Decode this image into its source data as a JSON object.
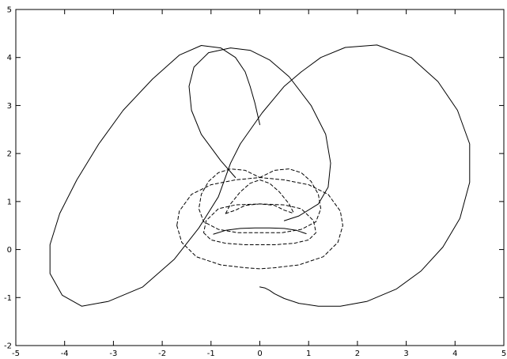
{
  "chart_data": {
    "type": "line",
    "title": "",
    "xlabel": "",
    "ylabel": "",
    "xlim": [
      -5,
      5
    ],
    "ylim": [
      -2,
      5
    ],
    "x_ticks": [
      -5,
      -4,
      -3,
      -2,
      -1,
      0,
      1,
      2,
      3,
      4,
      5
    ],
    "y_ticks": [
      -2,
      -1,
      0,
      1,
      2,
      3,
      4,
      5
    ],
    "x_tick_labels": [
      "-5",
      "-4",
      "-3",
      "-2",
      "-1",
      "0",
      "1",
      "2",
      "3",
      "4",
      "5"
    ],
    "y_tick_labels": [
      "-2",
      "-1",
      "0",
      "1",
      "2",
      "3",
      "4",
      "5"
    ],
    "grid": false,
    "legend": "none",
    "series": [
      {
        "style": "solid",
        "color": "#000000",
        "x": [
          0.0,
          0.1,
          0.2,
          0.3,
          0.5,
          0.8,
          1.2,
          1.65,
          2.2,
          2.8,
          3.3,
          3.75,
          4.1,
          4.3,
          4.3,
          4.05,
          3.65,
          3.1,
          2.4,
          1.75,
          1.25,
          0.85,
          0.5,
          0.05,
          -0.4,
          -0.6,
          -0.85,
          -1.25,
          -1.75,
          -2.4,
          -3.1,
          -3.65,
          -4.05,
          -4.3,
          -4.3,
          -4.1,
          -3.75,
          -3.3,
          -2.8,
          -2.2,
          -1.65,
          -1.2,
          -0.8,
          -0.5,
          -0.3,
          -0.2,
          -0.1,
          0.0
        ],
        "y": [
          -0.78,
          -0.8,
          -0.85,
          -0.92,
          -1.02,
          -1.12,
          -1.18,
          -1.18,
          -1.08,
          -0.82,
          -0.45,
          0.05,
          0.65,
          1.4,
          2.2,
          2.9,
          3.5,
          4.0,
          4.26,
          4.21,
          4.0,
          3.7,
          3.4,
          2.85,
          2.2,
          1.8,
          1.1,
          0.45,
          -0.2,
          -0.78,
          -1.08,
          -1.18,
          -0.95,
          -0.5,
          0.1,
          0.75,
          1.45,
          2.2,
          2.9,
          3.55,
          4.05,
          4.25,
          4.2,
          4.0,
          3.7,
          3.4,
          3.05,
          2.6
        ]
      },
      {
        "style": "solid",
        "color": "#000000",
        "x": [
          -0.5,
          -0.8,
          -1.2,
          -1.4,
          -1.45,
          -1.35,
          -1.05,
          -0.6,
          -0.2,
          0.2,
          0.6,
          1.05,
          1.35,
          1.45,
          1.4,
          1.2,
          0.8,
          0.5
        ],
        "y": [
          1.5,
          1.85,
          2.4,
          2.9,
          3.4,
          3.8,
          4.1,
          4.2,
          4.15,
          3.95,
          3.6,
          3.0,
          2.4,
          1.8,
          1.3,
          0.95,
          0.7,
          0.6
        ]
      },
      {
        "style": "solid",
        "color": "#000000",
        "x": [
          -0.95,
          -0.7,
          -0.4,
          -0.1,
          0.2,
          0.5,
          0.75,
          0.95
        ],
        "y": [
          0.32,
          0.4,
          0.44,
          0.45,
          0.45,
          0.44,
          0.4,
          0.33
        ]
      },
      {
        "style": "dashed",
        "color": "#000000",
        "x": [
          0.0,
          0.3,
          0.6,
          0.85,
          1.05,
          1.2,
          1.25,
          1.15,
          0.85,
          0.45,
          0.0,
          -0.45,
          -0.85,
          -1.15,
          -1.25,
          -1.2,
          -1.05,
          -0.85,
          -0.6,
          -0.3,
          0.0
        ],
        "y": [
          1.5,
          1.65,
          1.68,
          1.6,
          1.42,
          1.15,
          0.85,
          0.58,
          0.42,
          0.35,
          0.35,
          0.35,
          0.42,
          0.58,
          0.85,
          1.15,
          1.42,
          1.6,
          1.68,
          1.65,
          1.5
        ]
      },
      {
        "style": "dashed",
        "color": "#000000",
        "x": [
          -0.7,
          -0.6,
          -0.4,
          -0.2,
          0.0,
          0.2,
          0.4,
          0.6,
          0.7
        ],
        "y": [
          0.75,
          0.95,
          1.2,
          1.38,
          1.45,
          1.38,
          1.2,
          0.95,
          0.75
        ]
      },
      {
        "style": "dashed",
        "color": "#000000",
        "x": [
          -0.7,
          -0.5,
          -0.3,
          0.0,
          0.3,
          0.5,
          0.7
        ],
        "y": [
          0.75,
          0.82,
          0.92,
          0.95,
          0.92,
          0.82,
          0.75
        ]
      },
      {
        "style": "dashed",
        "color": "#000000",
        "x": [
          -1.15,
          -1.0,
          -0.7,
          -0.3,
          0.0,
          0.3,
          0.7,
          1.0,
          1.15,
          1.1,
          0.85,
          0.5,
          0.0,
          -0.5,
          -0.85,
          -1.1,
          -1.15
        ],
        "y": [
          0.35,
          0.2,
          0.13,
          0.1,
          0.1,
          0.1,
          0.13,
          0.2,
          0.35,
          0.6,
          0.85,
          0.93,
          0.95,
          0.93,
          0.85,
          0.6,
          0.35
        ]
      },
      {
        "style": "dashed",
        "color": "#000000",
        "x": [
          -1.7,
          -1.6,
          -1.3,
          -0.8,
          -0.3,
          0.0,
          0.3,
          0.8,
          1.3,
          1.6,
          1.7,
          1.65,
          1.4,
          1.0,
          0.5,
          0.0,
          -0.5,
          -1.0,
          -1.4,
          -1.65,
          -1.7
        ],
        "y": [
          0.5,
          0.15,
          -0.15,
          -0.32,
          -0.38,
          -0.4,
          -0.38,
          -0.32,
          -0.15,
          0.15,
          0.5,
          0.8,
          1.15,
          1.35,
          1.45,
          1.5,
          1.45,
          1.35,
          1.15,
          0.8,
          0.5
        ]
      }
    ]
  }
}
